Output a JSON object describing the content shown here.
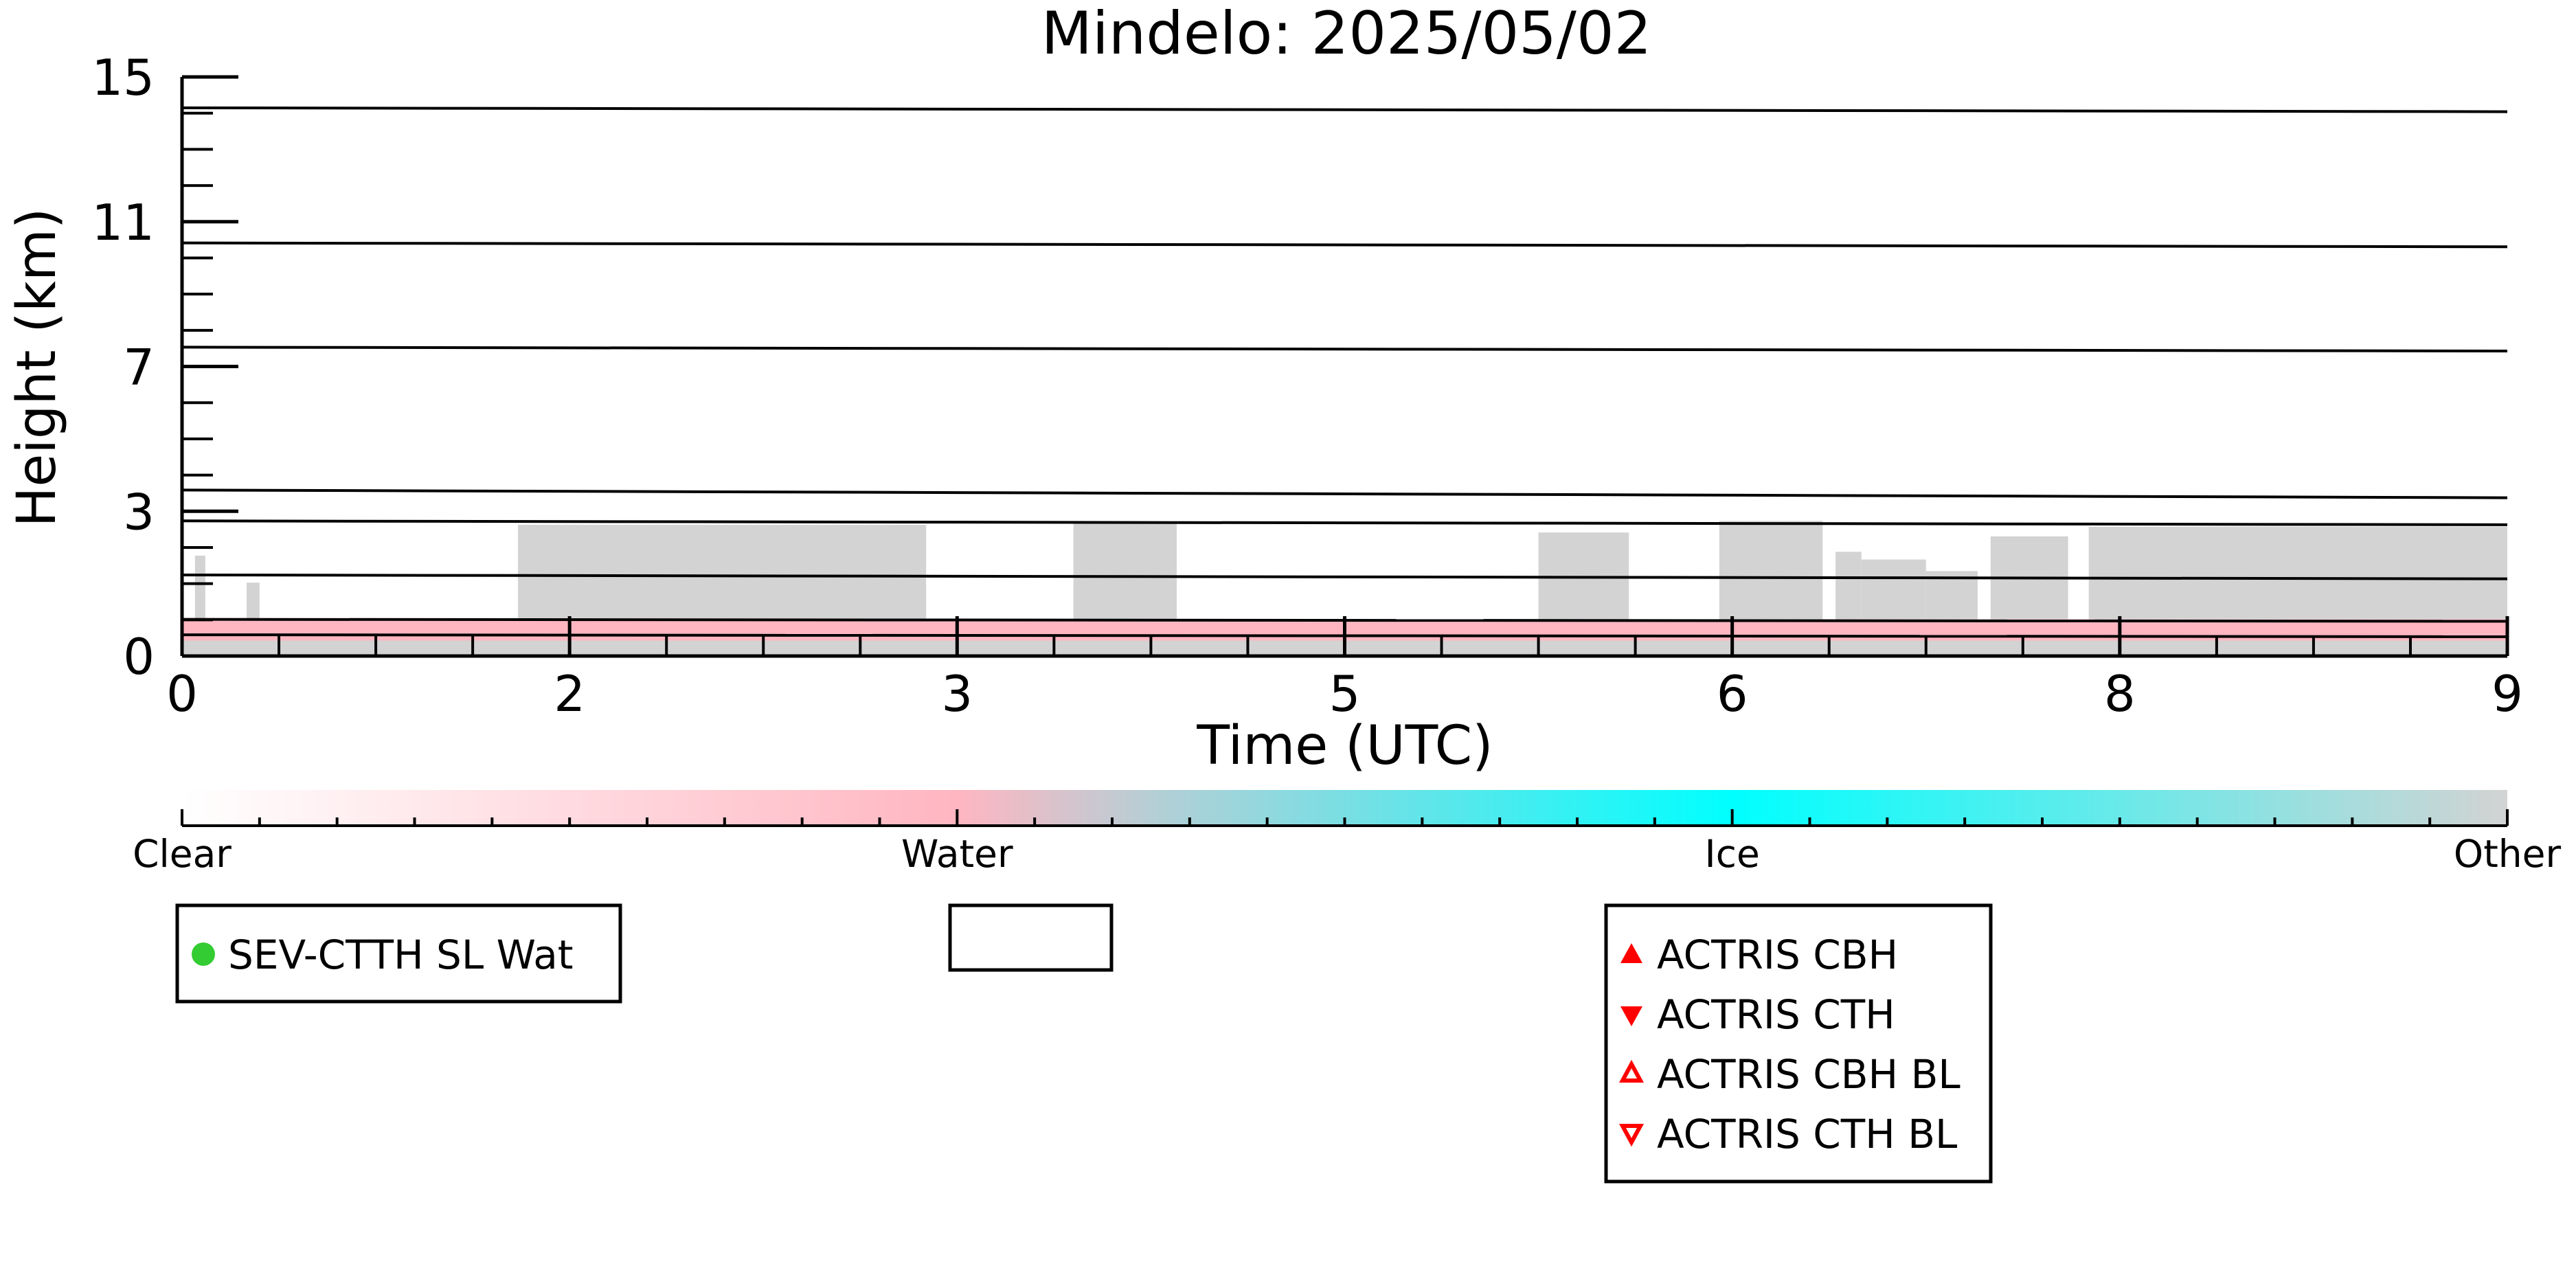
{
  "chart_data": {
    "type": "heatmap",
    "title": "Mindelo: 2025/05/02",
    "xlabel": "Time (UTC)",
    "ylabel": "Height (km)",
    "xlim": [
      0,
      9
    ],
    "ylim": [
      0,
      15
    ],
    "xticks": [
      {
        "value": 0,
        "label": "0"
      },
      {
        "value": 1.5,
        "label": "2"
      },
      {
        "value": 3,
        "label": "3"
      },
      {
        "value": 4.5,
        "label": "5"
      },
      {
        "value": 6,
        "label": "6"
      },
      {
        "value": 7.5,
        "label": "8"
      },
      {
        "value": 9,
        "label": "9"
      }
    ],
    "yticks": [
      {
        "value": 0,
        "label": "0"
      },
      {
        "value": 3.75,
        "label": "3"
      },
      {
        "value": 7.5,
        "label": "7"
      },
      {
        "value": 11.25,
        "label": "11"
      },
      {
        "value": 15,
        "label": "15"
      }
    ],
    "reference_lines_km": [
      [
        14.2,
        14.1
      ],
      [
        10.7,
        10.6
      ],
      [
        8.0,
        7.9
      ],
      [
        4.3,
        4.1
      ],
      [
        3.5,
        3.4
      ],
      [
        2.1,
        2.0
      ],
      [
        0.95,
        0.9
      ],
      [
        0.55,
        0.5
      ]
    ],
    "classes": [
      "Clear",
      "Water",
      "Ice",
      "Other"
    ],
    "class_colors": {
      "Clear": "#ffffff",
      "Water": "#ffb6c1",
      "Ice": "#00ffff",
      "Other": "#d3d3d3"
    },
    "surface_layer": {
      "class": "Other",
      "top_km": 0.4
    },
    "water_band": {
      "class": "Water",
      "bottom_km": 0.4,
      "top_km": 0.95
    },
    "other_segments": [
      {
        "start": 0.05,
        "end": 0.09,
        "top_km": 2.6
      },
      {
        "start": 0.25,
        "end": 0.3,
        "top_km": 1.9
      },
      {
        "start": 1.3,
        "end": 2.88,
        "top_km": 3.4
      },
      {
        "start": 3.45,
        "end": 3.85,
        "top_km": 3.45
      },
      {
        "start": 5.25,
        "end": 5.6,
        "top_km": 3.2
      },
      {
        "start": 5.95,
        "end": 6.35,
        "top_km": 3.5
      },
      {
        "start": 6.4,
        "end": 6.5,
        "top_km": 2.7
      },
      {
        "start": 6.5,
        "end": 6.75,
        "top_km": 2.5
      },
      {
        "start": 6.75,
        "end": 6.95,
        "top_km": 2.2
      },
      {
        "start": 7.0,
        "end": 7.3,
        "top_km": 3.1
      },
      {
        "start": 7.38,
        "end": 9.0,
        "top_km": 3.35
      }
    ]
  },
  "colorbar": {
    "labels": [
      "Clear",
      "Water",
      "Ice",
      "Other"
    ],
    "stops": [
      {
        "pos": 0,
        "color": "#ffffff"
      },
      {
        "pos": 0.333,
        "color": "#ffb6c1"
      },
      {
        "pos": 0.42,
        "color": "#b3cfd6"
      },
      {
        "pos": 0.667,
        "color": "#00ffff"
      },
      {
        "pos": 1,
        "color": "#d3d3d3"
      }
    ]
  },
  "legends": {
    "sev": {
      "items": [
        {
          "label": "SEV-CTTH SL Wat",
          "marker": "green-dot-icon",
          "color": "#33cc33"
        }
      ]
    },
    "empty": {
      "items": []
    },
    "actris": {
      "color": "#ff0000",
      "items": [
        {
          "label": "ACTRIS CBH",
          "marker": "filled-triangle-up-icon"
        },
        {
          "label": "ACTRIS CTH",
          "marker": "filled-triangle-down-icon"
        },
        {
          "label": "ACTRIS CBH BL",
          "marker": "open-triangle-up-icon"
        },
        {
          "label": "ACTRIS CTH BL",
          "marker": "open-triangle-down-icon"
        }
      ]
    }
  }
}
